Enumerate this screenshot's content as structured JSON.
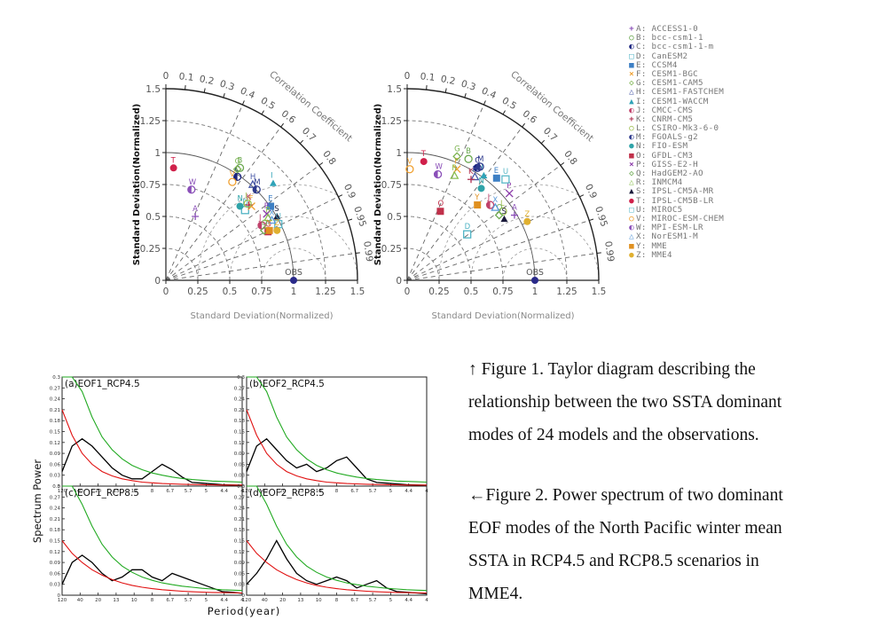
{
  "chart_data": [
    {
      "type": "scatter",
      "subtype": "taylor-diagram",
      "panel": "left",
      "ylabel": "Standard Deviation(Normalized)",
      "xlabel": "Standard Deviation(Normalized)",
      "arc_label": "Correlation Coefficient",
      "xlim": [
        0,
        1.5
      ],
      "ylim": [
        0,
        1.5
      ],
      "x_ticks": [
        "0",
        "0.25",
        "0.5",
        "0.75",
        "1",
        "1.25",
        "1.5"
      ],
      "y_ticks": [
        "0",
        "0.25",
        "0.5",
        "0.75",
        "1",
        "1.25",
        "1.5"
      ],
      "corr_ticks": [
        "0",
        "0.1",
        "0.2",
        "0.3",
        "0.4",
        "0.5",
        "0.6",
        "0.7",
        "0.8",
        "0.9",
        "0.95",
        "0.99"
      ],
      "ref_point": {
        "label": "OBS",
        "x": 1.0,
        "y": 0.0
      },
      "points": [
        {
          "m": "A",
          "x": 0.23,
          "y": 0.5
        },
        {
          "m": "B",
          "x": 0.58,
          "y": 0.88
        },
        {
          "m": "C",
          "x": 0.56,
          "y": 0.81
        },
        {
          "m": "D",
          "x": 0.62,
          "y": 0.55
        },
        {
          "m": "E",
          "x": 0.82,
          "y": 0.58
        },
        {
          "m": "F",
          "x": 0.67,
          "y": 0.58
        },
        {
          "m": "G",
          "x": 0.56,
          "y": 0.87
        },
        {
          "m": "H",
          "x": 0.68,
          "y": 0.75
        },
        {
          "m": "I",
          "x": 0.84,
          "y": 0.76
        },
        {
          "m": "J",
          "x": 0.75,
          "y": 0.43
        },
        {
          "m": "K",
          "x": 0.65,
          "y": 0.59
        },
        {
          "m": "L",
          "x": 0.64,
          "y": 0.6
        },
        {
          "m": "M",
          "x": 0.71,
          "y": 0.71
        },
        {
          "m": "N",
          "x": 0.58,
          "y": 0.58
        },
        {
          "m": "O",
          "x": 0.8,
          "y": 0.38
        },
        {
          "m": "P",
          "x": 0.79,
          "y": 0.52
        },
        {
          "m": "Q",
          "x": 0.77,
          "y": 0.39
        },
        {
          "m": "R",
          "x": 0.8,
          "y": 0.49
        },
        {
          "m": "S",
          "x": 0.87,
          "y": 0.5
        },
        {
          "m": "T",
          "x": 0.06,
          "y": 0.88
        },
        {
          "m": "U",
          "x": 0.88,
          "y": 0.44
        },
        {
          "m": "V",
          "x": 0.52,
          "y": 0.77
        },
        {
          "m": "W",
          "x": 0.2,
          "y": 0.71
        },
        {
          "m": "X",
          "x": 0.83,
          "y": 0.47
        },
        {
          "m": "Y",
          "x": 0.81,
          "y": 0.39
        },
        {
          "m": "Z",
          "x": 0.87,
          "y": 0.39
        }
      ]
    },
    {
      "type": "scatter",
      "subtype": "taylor-diagram",
      "panel": "right",
      "ylabel": "Standard Deviation(Normalized)",
      "xlabel": "Standard Deviation(Normalized)",
      "arc_label": "Correlation Coefficient",
      "xlim": [
        0,
        1.5
      ],
      "ylim": [
        0,
        1.5
      ],
      "x_ticks": [
        "0",
        "0.25",
        "0.5",
        "0.75",
        "1",
        "1.25",
        "1.5"
      ],
      "y_ticks": [
        "0",
        "0.25",
        "0.5",
        "0.75",
        "1",
        "1.25",
        "1.5"
      ],
      "corr_ticks": [
        "0",
        "0.1",
        "0.2",
        "0.3",
        "0.4",
        "0.5",
        "0.6",
        "0.7",
        "0.8",
        "0.9",
        "0.95",
        "0.99"
      ],
      "ref_point": {
        "label": "OBS",
        "x": 1.0,
        "y": 0.0
      },
      "points": [
        {
          "m": "A",
          "x": 0.84,
          "y": 0.51
        },
        {
          "m": "B",
          "x": 0.48,
          "y": 0.95
        },
        {
          "m": "C",
          "x": 0.55,
          "y": 0.88
        },
        {
          "m": "D",
          "x": 0.47,
          "y": 0.36
        },
        {
          "m": "E",
          "x": 0.7,
          "y": 0.8
        },
        {
          "m": "F",
          "x": 0.39,
          "y": 0.87
        },
        {
          "m": "G",
          "x": 0.39,
          "y": 0.97
        },
        {
          "m": "H",
          "x": 0.53,
          "y": 0.81
        },
        {
          "m": "I",
          "x": 0.6,
          "y": 0.82
        },
        {
          "m": "J",
          "x": 0.65,
          "y": 0.59
        },
        {
          "m": "K",
          "x": 0.5,
          "y": 0.79
        },
        {
          "m": "L",
          "x": 0.75,
          "y": 0.54
        },
        {
          "m": "M",
          "x": 0.57,
          "y": 0.89
        },
        {
          "m": "N",
          "x": 0.58,
          "y": 0.72
        },
        {
          "m": "O",
          "x": 0.26,
          "y": 0.54
        },
        {
          "m": "P",
          "x": 0.8,
          "y": 0.68
        },
        {
          "m": "Q",
          "x": 0.72,
          "y": 0.51
        },
        {
          "m": "R",
          "x": 0.37,
          "y": 0.82
        },
        {
          "m": "S",
          "x": 0.76,
          "y": 0.48
        },
        {
          "m": "T",
          "x": 0.13,
          "y": 0.93
        },
        {
          "m": "U",
          "x": 0.77,
          "y": 0.79
        },
        {
          "m": "V",
          "x": 0.02,
          "y": 0.87
        },
        {
          "m": "W",
          "x": 0.24,
          "y": 0.83
        },
        {
          "m": "X",
          "x": 0.69,
          "y": 0.57
        },
        {
          "m": "Y",
          "x": 0.55,
          "y": 0.59
        },
        {
          "m": "Z",
          "x": 0.94,
          "y": 0.46
        }
      ]
    },
    {
      "type": "line",
      "subtype": "power-spectrum",
      "panels": [
        {
          "title": "(a)EOF1_RCP4.5",
          "series": [
            {
              "color": "#000000",
              "values": [
                0.04,
                0.11,
                0.13,
                0.11,
                0.08,
                0.05,
                0.03,
                0.02,
                0.02,
                0.04,
                0.06,
                0.045,
                0.025,
                0.01,
                0.008,
                0.006,
                0.004,
                0.003,
                0.002
              ]
            },
            {
              "color": "#e01010",
              "values": [
                0.21,
                0.14,
                0.09,
                0.06,
                0.04,
                0.028,
                0.02,
                0.015,
                0.011,
                0.009,
                0.007,
                0.006,
                0.005,
                0.0045,
                0.004,
                0.0035,
                0.003,
                0.003,
                0.003
              ]
            },
            {
              "color": "#22aa22",
              "values": [
                0.3,
                0.3,
                0.26,
                0.19,
                0.135,
                0.1,
                0.075,
                0.057,
                0.045,
                0.036,
                0.03,
                0.025,
                0.021,
                0.018,
                0.016,
                0.014,
                0.013,
                0.012,
                0.011
              ]
            }
          ]
        },
        {
          "title": "(b)EOF2_RCP4.5",
          "series": [
            {
              "color": "#000000",
              "values": [
                0.04,
                0.11,
                0.13,
                0.1,
                0.07,
                0.05,
                0.06,
                0.04,
                0.05,
                0.07,
                0.08,
                0.05,
                0.02,
                0.01,
                0.008,
                0.006,
                0.004,
                0.003,
                0.002
              ]
            },
            {
              "color": "#e01010",
              "values": [
                0.21,
                0.14,
                0.09,
                0.06,
                0.04,
                0.028,
                0.02,
                0.015,
                0.011,
                0.009,
                0.007,
                0.006,
                0.005,
                0.0045,
                0.004,
                0.0035,
                0.003,
                0.003,
                0.003
              ]
            },
            {
              "color": "#22aa22",
              "values": [
                0.3,
                0.3,
                0.26,
                0.19,
                0.135,
                0.1,
                0.075,
                0.057,
                0.045,
                0.036,
                0.03,
                0.025,
                0.021,
                0.018,
                0.016,
                0.014,
                0.013,
                0.012,
                0.011
              ]
            }
          ]
        },
        {
          "title": "(c)EOF1_RCP8.5",
          "series": [
            {
              "color": "#000000",
              "values": [
                0.03,
                0.09,
                0.11,
                0.09,
                0.06,
                0.04,
                0.05,
                0.07,
                0.07,
                0.05,
                0.04,
                0.06,
                0.05,
                0.04,
                0.03,
                0.02,
                0.01,
                0.008,
                0.005
              ]
            },
            {
              "color": "#e01010",
              "values": [
                0.15,
                0.115,
                0.09,
                0.07,
                0.055,
                0.043,
                0.034,
                0.027,
                0.022,
                0.018,
                0.015,
                0.013,
                0.011,
                0.0095,
                0.0085,
                0.0075,
                0.007,
                0.0065,
                0.006
              ]
            },
            {
              "color": "#22aa22",
              "values": [
                0.3,
                0.3,
                0.25,
                0.19,
                0.14,
                0.105,
                0.08,
                0.063,
                0.05,
                0.041,
                0.034,
                0.029,
                0.025,
                0.022,
                0.019,
                0.017,
                0.015,
                0.014,
                0.013
              ]
            }
          ]
        },
        {
          "title": "(d)EOF2_RCP8.5",
          "series": [
            {
              "color": "#000000",
              "values": [
                0.03,
                0.06,
                0.1,
                0.15,
                0.1,
                0.06,
                0.04,
                0.03,
                0.04,
                0.05,
                0.04,
                0.02,
                0.03,
                0.04,
                0.02,
                0.01,
                0.008,
                0.006,
                0.004
              ]
            },
            {
              "color": "#e01010",
              "values": [
                0.15,
                0.115,
                0.09,
                0.07,
                0.055,
                0.043,
                0.034,
                0.027,
                0.022,
                0.018,
                0.015,
                0.013,
                0.011,
                0.0095,
                0.0085,
                0.0075,
                0.007,
                0.0065,
                0.006
              ]
            },
            {
              "color": "#22aa22",
              "values": [
                0.3,
                0.3,
                0.25,
                0.19,
                0.14,
                0.105,
                0.08,
                0.063,
                0.05,
                0.041,
                0.034,
                0.029,
                0.025,
                0.022,
                0.019,
                0.017,
                0.015,
                0.014,
                0.013
              ]
            }
          ]
        }
      ],
      "ylabel": "Spectrum Power",
      "xlabel": "Period(year)",
      "ylim": [
        0,
        0.3
      ],
      "y_ticks": [
        "0",
        "0.03",
        "0.06",
        "0.09",
        "0.12",
        "0.15",
        "0.18",
        "0.21",
        "0.24",
        "0.27",
        "0.3"
      ],
      "x_ticks": [
        "120",
        "40",
        "20",
        "13",
        "10",
        "8",
        "6.7",
        "5.7",
        "5",
        "4.4",
        "4"
      ]
    }
  ],
  "legend": [
    {
      "code": "A",
      "model": "ACCESS1-0",
      "marker": "+",
      "color": "#8a4fb8"
    },
    {
      "code": "B",
      "model": "bcc-csm1-1",
      "marker": "○",
      "color": "#6aa84f"
    },
    {
      "code": "C",
      "model": "bcc-csm1-1-m",
      "marker": "◐",
      "color": "#1a237e"
    },
    {
      "code": "D",
      "model": "CanESM2",
      "marker": "□",
      "color": "#4fb3c4"
    },
    {
      "code": "E",
      "model": "CCSM4",
      "marker": "■",
      "color": "#3d7fc4"
    },
    {
      "code": "F",
      "model": "CESM1-BGC",
      "marker": "×",
      "color": "#f0a030"
    },
    {
      "code": "G",
      "model": "CESM1-CAM5",
      "marker": "◇",
      "color": "#7bb34f"
    },
    {
      "code": "H",
      "model": "CESM1-FASTCHEM",
      "marker": "△",
      "color": "#4a5aa8"
    },
    {
      "code": "I",
      "model": "CESM1-WACCM",
      "marker": "▲",
      "color": "#2fa3b8"
    },
    {
      "code": "J",
      "model": "CMCC-CMS",
      "marker": "◐",
      "color": "#c0406a"
    },
    {
      "code": "K",
      "model": "CNRM-CM5",
      "marker": "+",
      "color": "#b03050"
    },
    {
      "code": "L",
      "model": "CSIRO-Mk3-6-0",
      "marker": "○",
      "color": "#9fbf50"
    },
    {
      "code": "M",
      "model": "FGOALS-g2",
      "marker": "◐",
      "color": "#2e3a8c"
    },
    {
      "code": "N",
      "model": "FIO-ESM",
      "marker": "●",
      "color": "#2fa3a8"
    },
    {
      "code": "O",
      "model": "GFDL-CM3",
      "marker": "■",
      "color": "#c0304a"
    },
    {
      "code": "P",
      "model": "GISS-E2-H",
      "marker": "×",
      "color": "#8a3aa8"
    },
    {
      "code": "Q",
      "model": "HadGEM2-AO",
      "marker": "◇",
      "color": "#6aa84f"
    },
    {
      "code": "R",
      "model": "INMCM4",
      "marker": "△",
      "color": "#8abf50"
    },
    {
      "code": "S",
      "model": "IPSL-CM5A-MR",
      "marker": "▲",
      "color": "#1a1a3a"
    },
    {
      "code": "T",
      "model": "IPSL-CM5B-LR",
      "marker": "●",
      "color": "#d0204a"
    },
    {
      "code": "U",
      "model": "MIROC5",
      "marker": "□",
      "color": "#5ab8c8"
    },
    {
      "code": "V",
      "model": "MIROC-ESM-CHEM",
      "marker": "○",
      "color": "#f0a030"
    },
    {
      "code": "W",
      "model": "MPI-ESM-LR",
      "marker": "◐",
      "color": "#8a4fb8"
    },
    {
      "code": "X",
      "model": "NorESM1-M",
      "marker": "△",
      "color": "#5a9ad8"
    },
    {
      "code": "Y",
      "model": "MME",
      "marker": "■",
      "color": "#e09020"
    },
    {
      "code": "Z",
      "model": "MME4",
      "marker": "●",
      "color": "#e0b030"
    }
  ],
  "caption1": [
    "↑ Figure 1. Taylor diagram describing the",
    "relationship between the two SSTA dominant",
    "modes of 24 models and the observations."
  ],
  "caption2": [
    "←Figure 2. Power spectrum of two dominant",
    "EOF modes of the North Pacific winter mean",
    "SSTA in RCP4.5 and RCP8.5 scenarios in",
    "MME4."
  ]
}
